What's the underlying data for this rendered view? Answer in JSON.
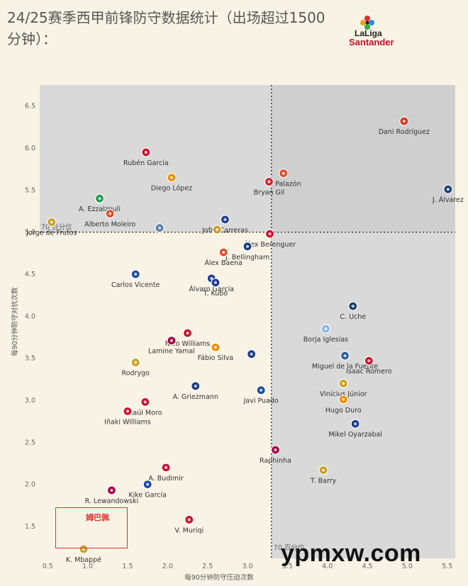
{
  "title": "24/25赛季西甲前锋防守数据统计（出场超过1500分钟）：",
  "logo": {
    "brand_line1": "LaLiga",
    "brand_line2": "Santander"
  },
  "highlight_label": "姆巴佩",
  "watermark": "ypmxw.com",
  "chart_data": {
    "type": "scatter",
    "title": "24/25赛季西甲前锋防守数据统计（出场超过1500分钟）：",
    "xlabel": "每90分钟防守压迫次数",
    "ylabel": "每90分钟防守对抗次数",
    "xlim": [
      0.4,
      5.6
    ],
    "ylim": [
      1.12,
      6.75
    ],
    "x_ticks": [
      "0.5",
      "1.0",
      "1.5",
      "2.0",
      "2.5",
      "3.0",
      "3.5",
      "4.0",
      "4.5",
      "5.0",
      "5.5"
    ],
    "y_ticks": [
      "1.5",
      "2.0",
      "2.5",
      "3.0",
      "3.5",
      "4.0",
      "4.5",
      "5.0",
      "5.5",
      "6.0",
      "6.5"
    ],
    "reference_lines": [
      {
        "axis": "x",
        "value": 3.3,
        "label": "70 百分位"
      },
      {
        "axis": "y",
        "value": 5.0,
        "label": "70 百分位"
      }
    ],
    "points": [
      {
        "name": "Dani Rodríguez",
        "x": 4.96,
        "y": 6.32,
        "color": "#d8311c"
      },
      {
        "name": "Rubén García",
        "x": 1.73,
        "y": 5.95,
        "color": "#c8102e"
      },
      {
        "name": "Isi Palazón",
        "x": 3.45,
        "y": 5.7,
        "color": "#e04a2a"
      },
      {
        "name": "Diego López",
        "x": 2.05,
        "y": 5.65,
        "color": "#f08c00"
      },
      {
        "name": "Bryan Gil",
        "x": 3.27,
        "y": 5.6,
        "color": "#d6202a"
      },
      {
        "name": "J. Álvarez",
        "x": 5.51,
        "y": 5.51,
        "color": "#1a3a7a"
      },
      {
        "name": "A. Ezzalzouli",
        "x": 1.15,
        "y": 5.4,
        "color": "#1a9a4a"
      },
      {
        "name": "Alberto Moleiro",
        "x": 1.28,
        "y": 5.22,
        "color": "#e04a2a"
      },
      {
        "name": "Jofre Carreras",
        "x": 2.72,
        "y": 5.15,
        "color": "#1a3a8a"
      },
      {
        "name": "Jorge de Frutos",
        "x": 0.55,
        "y": 5.12,
        "color": "#c8a020"
      },
      {
        "name": "",
        "x": 1.9,
        "y": 5.05,
        "color": "#5a7aaa"
      },
      {
        "name": "",
        "x": 2.62,
        "y": 5.03,
        "color": "#c89a2a"
      },
      {
        "name": "Álex Berenguer",
        "x": 3.28,
        "y": 4.98,
        "color": "#c8102e"
      },
      {
        "name": "J. Bellingham",
        "x": 3.0,
        "y": 4.83,
        "color": "#1a3a7a"
      },
      {
        "name": "Álex Baena",
        "x": 2.7,
        "y": 4.76,
        "color": "#e04a2a"
      },
      {
        "name": "Carlos Vicente",
        "x": 1.6,
        "y": 4.5,
        "color": "#1a4aa0"
      },
      {
        "name": "Álvaro García",
        "x": 2.55,
        "y": 4.45,
        "color": "#1a3a8a"
      },
      {
        "name": "T. Kubo",
        "x": 2.6,
        "y": 4.4,
        "color": "#1a3a8a"
      },
      {
        "name": "C. Uche",
        "x": 4.32,
        "y": 4.12,
        "color": "#1a3a6a"
      },
      {
        "name": "Borja Iglesias",
        "x": 3.98,
        "y": 3.85,
        "color": "#8ab4e0"
      },
      {
        "name": "Nico Williams",
        "x": 2.25,
        "y": 3.8,
        "color": "#c8102e"
      },
      {
        "name": "Lamine Yamal",
        "x": 2.05,
        "y": 3.71,
        "color": "#a50044"
      },
      {
        "name": "Fábio Silva",
        "x": 2.6,
        "y": 3.63,
        "color": "#f08c00"
      },
      {
        "name": "",
        "x": 3.05,
        "y": 3.55,
        "color": "#1a3a8a"
      },
      {
        "name": "Miguel de la Fuente",
        "x": 4.22,
        "y": 3.53,
        "color": "#2a5a9a"
      },
      {
        "name": "Isaac Romero",
        "x": 4.52,
        "y": 3.47,
        "color": "#c8102e"
      },
      {
        "name": "Rodrygo",
        "x": 1.6,
        "y": 3.45,
        "color": "#c8a020"
      },
      {
        "name": "Vinícius Júnior",
        "x": 4.2,
        "y": 3.2,
        "color": "#c8a020"
      },
      {
        "name": "A. Griezmann",
        "x": 2.35,
        "y": 3.17,
        "color": "#1a3a8a"
      },
      {
        "name": "Javi Puado",
        "x": 3.17,
        "y": 3.12,
        "color": "#1a4aa0"
      },
      {
        "name": "Hugo Duro",
        "x": 4.2,
        "y": 3.01,
        "color": "#f08c00"
      },
      {
        "name": "Raúl Moro",
        "x": 1.72,
        "y": 2.98,
        "color": "#c8102e"
      },
      {
        "name": "Iñaki Williams",
        "x": 1.5,
        "y": 2.87,
        "color": "#c8102e"
      },
      {
        "name": "Mikel Oyarzabal",
        "x": 4.35,
        "y": 2.72,
        "color": "#1a3a8a"
      },
      {
        "name": "Raphinha",
        "x": 3.35,
        "y": 2.41,
        "color": "#a50044"
      },
      {
        "name": "A. Budimir",
        "x": 1.98,
        "y": 2.2,
        "color": "#c8102e"
      },
      {
        "name": "T. Barry",
        "x": 3.95,
        "y": 2.17,
        "color": "#c8a020"
      },
      {
        "name": "R. Lewandowski",
        "x": 1.3,
        "y": 1.93,
        "color": "#a50044"
      },
      {
        "name": "Kike García",
        "x": 1.75,
        "y": 2.0,
        "color": "#1a4aa0"
      },
      {
        "name": "V. Muriqi",
        "x": 2.27,
        "y": 1.58,
        "color": "#c8102e"
      },
      {
        "name": "K. Mbappé",
        "x": 0.95,
        "y": 1.23,
        "color": "#c8a020"
      }
    ]
  }
}
